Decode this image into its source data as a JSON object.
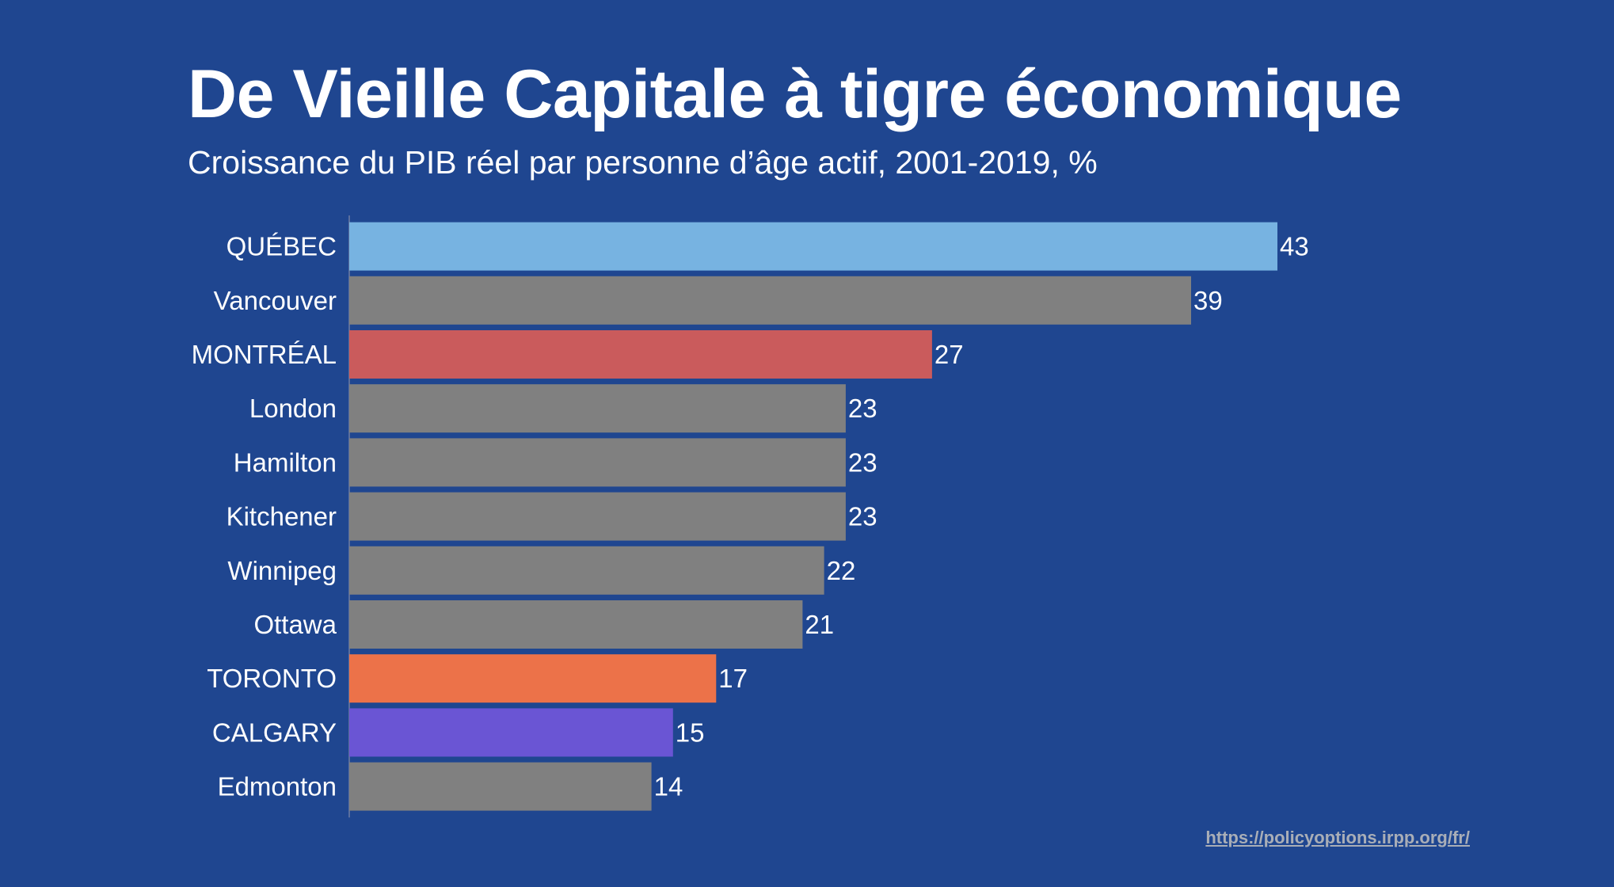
{
  "header": {
    "title": "De Vieille Capitale à tigre économique",
    "subtitle": "Croissance du PIB réel par personne d’âge actif, 2001-2019, %"
  },
  "source": {
    "link_text": "https://policyoptions.irpp.org/fr/"
  },
  "colors": {
    "background": "#1f4690",
    "default_bar": "#808080",
    "text": "#ffffff",
    "axis": "#5a6f9e",
    "link": "#a9aeb7"
  },
  "chart_data": {
    "type": "bar",
    "orientation": "horizontal",
    "title": "De Vieille Capitale à tigre économique",
    "subtitle": "Croissance du PIB réel par personne d’âge actif, 2001-2019, %",
    "xlabel": "",
    "ylabel": "",
    "xlim": [
      0,
      43
    ],
    "grid": false,
    "legend": false,
    "categories": [
      "QUÉBEC",
      "Vancouver",
      "MONTRÉAL",
      "London",
      "Hamilton",
      "Kitchener",
      "Winnipeg",
      "Ottawa",
      "TORONTO",
      "CALGARY",
      "Edmonton"
    ],
    "values": [
      43,
      39,
      27,
      23,
      23,
      23,
      22,
      21,
      17,
      15,
      14
    ],
    "bar_colors": [
      "#77b3e1",
      "#808080",
      "#ca5b5c",
      "#808080",
      "#808080",
      "#808080",
      "#808080",
      "#808080",
      "#ec7249",
      "#6a55d4",
      "#808080"
    ],
    "data_labels": [
      "43",
      "39",
      "27",
      "23",
      "23",
      "23",
      "22",
      "21",
      "17",
      "15",
      "14"
    ]
  }
}
